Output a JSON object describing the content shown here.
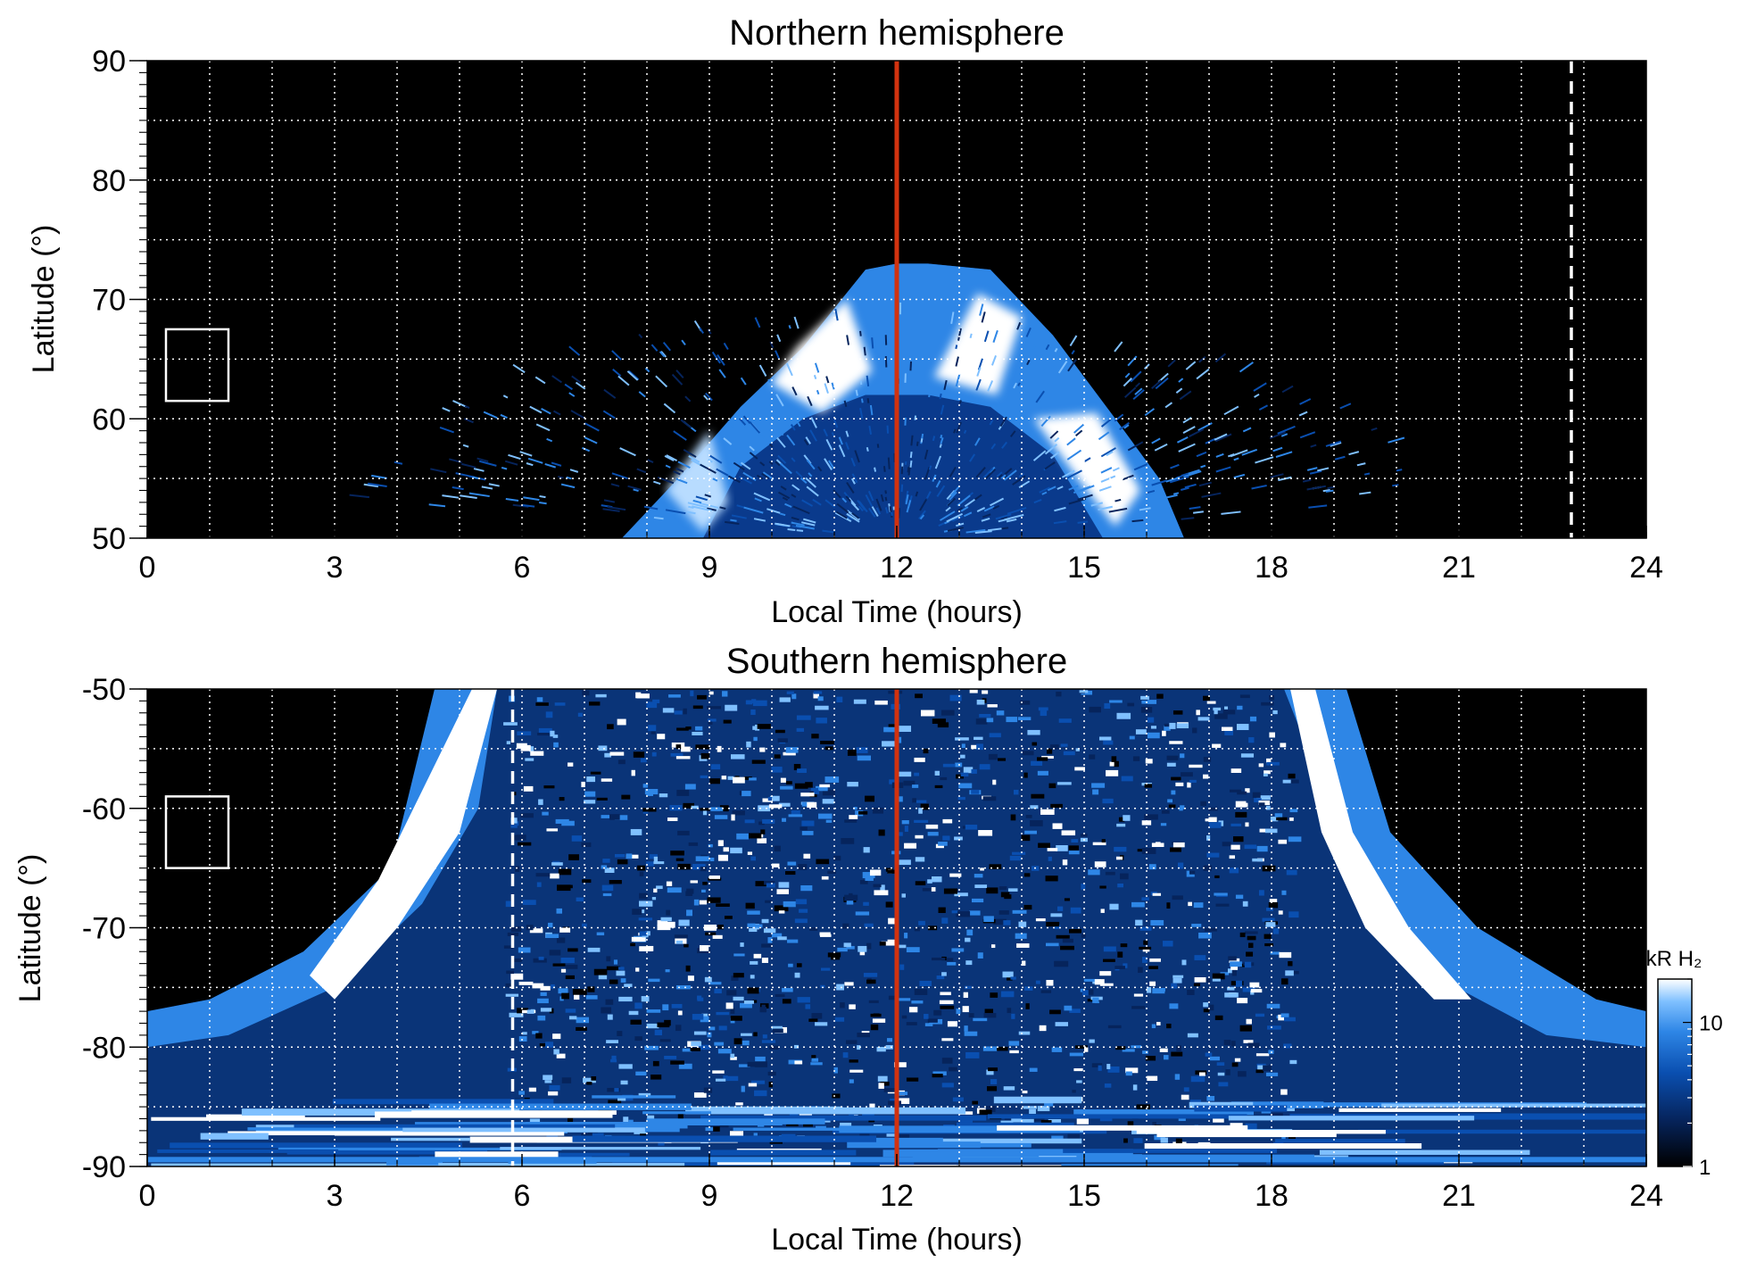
{
  "chart_data": [
    {
      "type": "heatmap",
      "title": "Northern hemisphere",
      "xlabel": "Local Time (hours)",
      "ylabel": "Latitude (°)",
      "xlim": [
        0,
        24
      ],
      "ylim": [
        50,
        90
      ],
      "x_ticks": [
        "0",
        "3",
        "6",
        "9",
        "12",
        "15",
        "18",
        "21",
        "24"
      ],
      "y_ticks": [
        "50",
        "60",
        "70",
        "80",
        "90"
      ],
      "grid": true,
      "background_color": "#000000",
      "colormap": [
        "#000000",
        "#06245c",
        "#0a4fb0",
        "#2e86e6",
        "#7fc0ff",
        "#ffffff"
      ],
      "main_oval": {
        "center_local_time": 12,
        "equatorward_edge": [
          [
            7.6,
            50
          ],
          [
            8.5,
            55
          ],
          [
            9.5,
            61
          ],
          [
            10.5,
            66
          ],
          [
            11.5,
            72.5
          ],
          [
            12.0,
            73
          ],
          [
            12.5,
            73
          ],
          [
            13.5,
            72.5
          ],
          [
            14.5,
            67
          ],
          [
            15.5,
            60
          ],
          [
            16.2,
            55
          ],
          [
            16.6,
            50
          ]
        ],
        "poleward_inner_edge": [
          [
            8.9,
            50
          ],
          [
            9.5,
            56
          ],
          [
            10.5,
            60
          ],
          [
            11.5,
            62
          ],
          [
            12.5,
            62
          ],
          [
            13.5,
            61
          ],
          [
            14.5,
            57
          ],
          [
            15.3,
            50
          ]
        ],
        "peak_brightness_kR": 20
      },
      "reference_lines": [
        {
          "local_time": 12,
          "style": "solid",
          "color": "#d2320f"
        },
        {
          "local_time": 22.8,
          "style": "dashed",
          "color": "#ffffff"
        }
      ],
      "annotation_box": {
        "local_time": [
          0.3,
          1.3
        ],
        "latitude": [
          61.5,
          67.5
        ],
        "color": "#ffffff"
      }
    },
    {
      "type": "heatmap",
      "title": "Southern hemisphere",
      "xlabel": "Local Time (hours)",
      "ylabel": "Latitude (°)",
      "xlim": [
        0,
        24
      ],
      "ylim": [
        -90,
        -50
      ],
      "x_ticks": [
        "0",
        "3",
        "6",
        "9",
        "12",
        "15",
        "18",
        "21",
        "24"
      ],
      "y_ticks": [
        "-50",
        "-60",
        "-70",
        "-80",
        "-90"
      ],
      "grid": true,
      "background_color": "#000000",
      "colormap": [
        "#000000",
        "#06245c",
        "#0a4fb0",
        "#2e86e6",
        "#7fc0ff",
        "#ffffff"
      ],
      "main_oval": {
        "left_arc": [
          [
            5.5,
            -50
          ],
          [
            5.0,
            -58
          ],
          [
            4.0,
            -65
          ],
          [
            2.5,
            -72
          ],
          [
            1.0,
            -76
          ],
          [
            0,
            -77
          ]
        ],
        "right_arc": [
          [
            18.3,
            -50
          ],
          [
            18.9,
            -58
          ],
          [
            19.8,
            -65
          ],
          [
            21.3,
            -72
          ],
          [
            23.0,
            -76
          ],
          [
            24,
            -77
          ]
        ],
        "peak_brightness_kR": 20
      },
      "reference_lines": [
        {
          "local_time": 12,
          "style": "solid",
          "color": "#d2320f"
        },
        {
          "local_time": 5.85,
          "style": "dashed",
          "color": "#ffffff"
        }
      ],
      "annotation_box": {
        "local_time": [
          0.3,
          1.3
        ],
        "latitude": [
          -65,
          -59
        ],
        "color": "#ffffff"
      }
    }
  ],
  "colorbar": {
    "label": "kR H₂",
    "scale": "log",
    "range": [
      1,
      20
    ],
    "ticks": [
      "1",
      "10"
    ]
  }
}
